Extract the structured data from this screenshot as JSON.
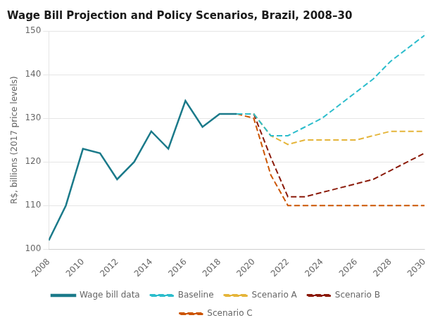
{
  "chart_data": {
    "type": "line",
    "title": "Wage Bill Projection and Policy Scenarios, Brazil, 2008–30",
    "y_label": "R$, billions (2017 price levels)",
    "xlim": [
      2008,
      2030
    ],
    "xticks": [
      2008,
      2010,
      2012,
      2014,
      2016,
      2018,
      2020,
      2022,
      2024,
      2026,
      2028,
      2030
    ],
    "ylim": [
      100,
      150
    ],
    "yticks": [
      100,
      110,
      120,
      130,
      140,
      150
    ],
    "grid": "y",
    "legend": "bottom",
    "series": [
      {
        "name": "Wage bill data",
        "color": "#1b7a8a",
        "line_style": "solid",
        "x": [
          2008,
          2009,
          2010,
          2011,
          2012,
          2013,
          2014,
          2015,
          2016,
          2017,
          2018,
          2019
        ],
        "values": [
          102,
          110,
          123,
          122,
          116,
          120,
          127,
          123,
          134,
          128,
          131,
          131
        ]
      },
      {
        "name": "Baseline",
        "color": "#2dbdcc",
        "line_style": "dashed",
        "x": [
          2019,
          2020,
          2021,
          2022,
          2023,
          2024,
          2025,
          2026,
          2027,
          2028,
          2029,
          2030
        ],
        "values": [
          131,
          131,
          126,
          126,
          128,
          130,
          133,
          136,
          139,
          143,
          146,
          149
        ]
      },
      {
        "name": "Scenario A",
        "color": "#e5b53a",
        "line_style": "dashed",
        "x": [
          2019,
          2020,
          2021,
          2022,
          2023,
          2024,
          2025,
          2026,
          2027,
          2028,
          2029,
          2030
        ],
        "values": [
          131,
          131,
          126,
          124,
          125,
          125,
          125,
          125,
          126,
          127,
          127,
          127
        ]
      },
      {
        "name": "Scenario B",
        "color": "#8b1a0a",
        "line_style": "dashed",
        "x": [
          2019,
          2020,
          2021,
          2022,
          2023,
          2024,
          2025,
          2026,
          2027,
          2028,
          2029,
          2030
        ],
        "values": [
          131,
          131,
          121,
          112,
          112,
          113,
          114,
          115,
          116,
          118,
          120,
          122
        ]
      },
      {
        "name": "Scenario C",
        "color": "#cc5500",
        "line_style": "dashed",
        "x": [
          2019,
          2020,
          2021,
          2022,
          2023,
          2024,
          2025,
          2026,
          2027,
          2028,
          2029,
          2030
        ],
        "values": [
          131,
          130,
          117,
          110,
          110,
          110,
          110,
          110,
          110,
          110,
          110,
          110
        ]
      }
    ]
  }
}
